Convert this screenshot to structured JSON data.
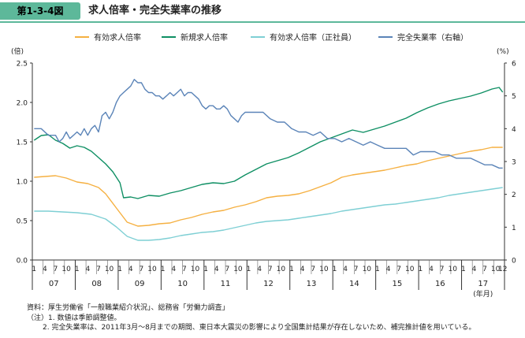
{
  "header": {
    "figure_label": "第1-3-4図",
    "title": "求人倍率・完全失業率の推移"
  },
  "notes": {
    "source": "資料：厚生労働省「一般職業紹介状況」、総務省「労働力調査」",
    "note1": "（注）1. 数値は季節調整値。",
    "note2": "2. 完全失業率は、2011年3月～8月までの期間、東日本大震災の影響により全国集計結果が存在しないため、補完推計値を用いている。"
  },
  "colors": {
    "active_ratio": "#f5b041",
    "new_ratio": "#0e8f63",
    "regular_ratio": "#7ecfd4",
    "unemployment": "#5b84b8",
    "axis": "#333333"
  },
  "chart_data": {
    "type": "line",
    "title": "求人倍率・完全失業率の推移",
    "left_axis": {
      "unit_label": "(倍)",
      "ylim": [
        0,
        2.5
      ],
      "ticks": [
        "0.0",
        "0.5",
        "1.0",
        "1.5",
        "2.0",
        "2.5"
      ]
    },
    "right_axis": {
      "unit_label": "(%)",
      "ylim": [
        0,
        6
      ],
      "ticks": [
        "0",
        "1",
        "2",
        "3",
        "4",
        "5",
        "6"
      ]
    },
    "x_axis": {
      "start": "2007-01",
      "end": "2017-12",
      "month_ticks": [
        "1",
        "4",
        "7",
        "10"
      ],
      "final_month_label": "12",
      "year_labels": [
        "07",
        "08",
        "09",
        "10",
        "11",
        "12",
        "13",
        "14",
        "15",
        "16",
        "17"
      ],
      "unit_label": "(年月)"
    },
    "legend": [
      {
        "name": "有効求人倍率",
        "color": "#f5b041"
      },
      {
        "name": "新規求人倍率",
        "color": "#0e8f63"
      },
      {
        "name": "有効求人倍率（正社員）",
        "color": "#7ecfd4"
      },
      {
        "name": "完全失業率（右軸）",
        "color": "#5b84b8"
      }
    ],
    "series": [
      {
        "name": "有効求人倍率",
        "axis": "left",
        "color": "#f5b041",
        "x_months": [
          0,
          3,
          6,
          9,
          12,
          15,
          18,
          20,
          23,
          26,
          29,
          32,
          35,
          38,
          41,
          44,
          47,
          50,
          53,
          56,
          59,
          62,
          65,
          68,
          71,
          74,
          77,
          80,
          83,
          86,
          89,
          92,
          95,
          98,
          101,
          104,
          107,
          110,
          113,
          116,
          119,
          122,
          125,
          128,
          131
        ],
        "values": [
          1.05,
          1.06,
          1.07,
          1.04,
          0.99,
          0.97,
          0.92,
          0.84,
          0.66,
          0.48,
          0.43,
          0.44,
          0.46,
          0.47,
          0.51,
          0.54,
          0.58,
          0.61,
          0.63,
          0.67,
          0.7,
          0.74,
          0.79,
          0.81,
          0.82,
          0.84,
          0.88,
          0.93,
          0.98,
          1.05,
          1.08,
          1.1,
          1.12,
          1.14,
          1.17,
          1.2,
          1.22,
          1.26,
          1.29,
          1.32,
          1.35,
          1.38,
          1.4,
          1.43,
          1.43
        ]
      },
      {
        "name": "新規求人倍率",
        "axis": "left",
        "color": "#0e8f63",
        "x_months": [
          0,
          2,
          4,
          6,
          8,
          10,
          12,
          14,
          16,
          18,
          20,
          22,
          24,
          25,
          27,
          29,
          32,
          35,
          38,
          41,
          44,
          47,
          50,
          53,
          56,
          59,
          62,
          65,
          68,
          71,
          74,
          77,
          80,
          83,
          86,
          89,
          92,
          95,
          98,
          101,
          104,
          107,
          110,
          113,
          116,
          119,
          122,
          125,
          128,
          130,
          131
        ],
        "values": [
          1.52,
          1.58,
          1.59,
          1.52,
          1.48,
          1.42,
          1.45,
          1.43,
          1.38,
          1.3,
          1.22,
          1.12,
          0.98,
          0.79,
          0.8,
          0.78,
          0.82,
          0.81,
          0.85,
          0.88,
          0.92,
          0.96,
          0.98,
          0.97,
          1.0,
          1.08,
          1.15,
          1.22,
          1.26,
          1.3,
          1.36,
          1.43,
          1.5,
          1.55,
          1.6,
          1.65,
          1.62,
          1.66,
          1.7,
          1.75,
          1.8,
          1.87,
          1.93,
          1.98,
          2.02,
          2.05,
          2.08,
          2.12,
          2.17,
          2.19,
          2.13
        ]
      },
      {
        "name": "有効求人倍率（正社員）",
        "axis": "left",
        "color": "#7ecfd4",
        "x_months": [
          0,
          4,
          8,
          12,
          16,
          20,
          23,
          26,
          29,
          32,
          35,
          38,
          41,
          44,
          47,
          50,
          53,
          56,
          59,
          62,
          65,
          68,
          71,
          74,
          77,
          80,
          83,
          86,
          89,
          92,
          95,
          98,
          101,
          104,
          107,
          110,
          113,
          116,
          119,
          122,
          125,
          128,
          131
        ],
        "values": [
          0.62,
          0.62,
          0.61,
          0.6,
          0.58,
          0.52,
          0.42,
          0.3,
          0.25,
          0.25,
          0.26,
          0.28,
          0.31,
          0.33,
          0.35,
          0.36,
          0.38,
          0.41,
          0.44,
          0.47,
          0.49,
          0.5,
          0.51,
          0.53,
          0.55,
          0.57,
          0.59,
          0.62,
          0.64,
          0.66,
          0.68,
          0.7,
          0.71,
          0.73,
          0.75,
          0.77,
          0.79,
          0.82,
          0.84,
          0.86,
          0.88,
          0.9,
          0.92
        ]
      },
      {
        "name": "完全失業率（右軸）",
        "axis": "right",
        "color": "#5b84b8",
        "x_months": [
          0,
          2,
          4,
          6,
          7,
          8,
          9,
          10,
          11,
          12,
          13,
          14,
          15,
          16,
          17,
          18,
          19,
          20,
          21,
          22,
          23,
          24,
          25,
          26,
          27,
          28,
          29,
          30,
          31,
          32,
          33,
          34,
          35,
          36,
          37,
          38,
          39,
          40,
          41,
          42,
          43,
          44,
          45,
          46,
          47,
          48,
          49,
          50,
          51,
          52,
          53,
          54,
          55,
          56,
          57,
          58,
          59,
          60,
          62,
          64,
          66,
          68,
          70,
          72,
          74,
          76,
          78,
          80,
          82,
          84,
          86,
          88,
          90,
          92,
          94,
          96,
          98,
          100,
          102,
          104,
          106,
          108,
          110,
          112,
          114,
          116,
          118,
          120,
          122,
          124,
          126,
          128,
          130,
          131
        ],
        "values": [
          4.0,
          4.0,
          3.8,
          3.8,
          3.6,
          3.7,
          3.9,
          3.7,
          3.8,
          3.9,
          3.8,
          4.0,
          3.8,
          4.0,
          4.1,
          3.9,
          4.4,
          4.5,
          4.3,
          4.5,
          4.8,
          5.0,
          5.1,
          5.2,
          5.3,
          5.5,
          5.4,
          5.4,
          5.2,
          5.1,
          5.1,
          5.0,
          5.0,
          4.9,
          5.0,
          5.1,
          5.0,
          5.1,
          5.2,
          5.0,
          5.1,
          5.1,
          5.0,
          4.9,
          4.7,
          4.6,
          4.7,
          4.7,
          4.6,
          4.6,
          4.7,
          4.6,
          4.4,
          4.3,
          4.2,
          4.4,
          4.5,
          4.5,
          4.5,
          4.5,
          4.3,
          4.2,
          4.2,
          4.0,
          3.9,
          3.9,
          3.8,
          3.9,
          3.7,
          3.7,
          3.6,
          3.7,
          3.6,
          3.5,
          3.6,
          3.5,
          3.4,
          3.4,
          3.4,
          3.4,
          3.2,
          3.3,
          3.3,
          3.3,
          3.2,
          3.2,
          3.1,
          3.1,
          3.1,
          3.0,
          2.9,
          2.9,
          2.8,
          2.8
        ]
      }
    ]
  }
}
